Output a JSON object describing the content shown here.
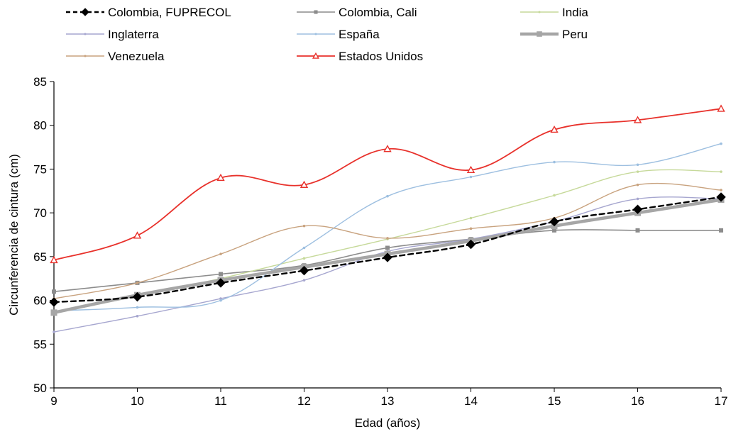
{
  "chart_data": {
    "type": "line",
    "xlabel": "Edad (años)",
    "ylabel": "Circunferencia de cintura (cm)",
    "xlim": [
      9,
      17
    ],
    "ylim": [
      50,
      85
    ],
    "xticks": [
      9,
      10,
      11,
      12,
      13,
      14,
      15,
      16,
      17
    ],
    "yticks": [
      50,
      55,
      60,
      65,
      70,
      75,
      80,
      85
    ],
    "grid": false,
    "legend_position": "top",
    "x": [
      9,
      10,
      11,
      12,
      13,
      14,
      15,
      16,
      17
    ],
    "series": [
      {
        "name": "Colombia, FUPRECOL",
        "color": "#000000",
        "dash": true,
        "marker": "diamond",
        "values": [
          59.8,
          60.4,
          62.0,
          63.4,
          64.9,
          66.4,
          69.0,
          70.4,
          71.8
        ]
      },
      {
        "name": "Colombia, Cali",
        "color": "#8c8c8c",
        "dash": false,
        "marker": "square",
        "values": [
          61.0,
          62.0,
          63.0,
          64.0,
          66.0,
          67.0,
          68.0,
          68.0,
          68.0
        ]
      },
      {
        "name": "India",
        "color": "#c6d99a",
        "dash": false,
        "marker": "dot",
        "values": [
          58.5,
          60.5,
          62.5,
          64.8,
          67.0,
          69.4,
          72.0,
          74.7,
          74.7
        ]
      },
      {
        "name": "Inglaterra",
        "color": "#a6a6cf",
        "dash": false,
        "marker": "dot",
        "values": [
          56.4,
          58.2,
          60.2,
          62.3,
          65.6,
          67.0,
          69.0,
          71.6,
          71.6
        ]
      },
      {
        "name": "España",
        "color": "#9dbfe0",
        "dash": false,
        "marker": "dot",
        "values": [
          58.8,
          59.2,
          60.0,
          66.0,
          71.9,
          74.1,
          75.8,
          75.5,
          77.9
        ]
      },
      {
        "name": "Peru",
        "color": "#a6a6a6",
        "dash": false,
        "marker": "square",
        "values": [
          58.6,
          60.6,
          62.3,
          63.8,
          65.3,
          66.8,
          68.5,
          70.0,
          71.5
        ]
      },
      {
        "name": "Venezuela",
        "color": "#c8a27e",
        "dash": false,
        "marker": "dot",
        "values": [
          60.2,
          62.0,
          65.3,
          68.5,
          67.1,
          68.2,
          69.4,
          73.2,
          72.6
        ]
      },
      {
        "name": "Estados Unidos",
        "color": "#e8312b",
        "dash": false,
        "marker": "triangle",
        "values": [
          64.6,
          67.4,
          74.0,
          73.2,
          77.3,
          74.9,
          79.5,
          80.6,
          81.9
        ]
      }
    ]
  }
}
